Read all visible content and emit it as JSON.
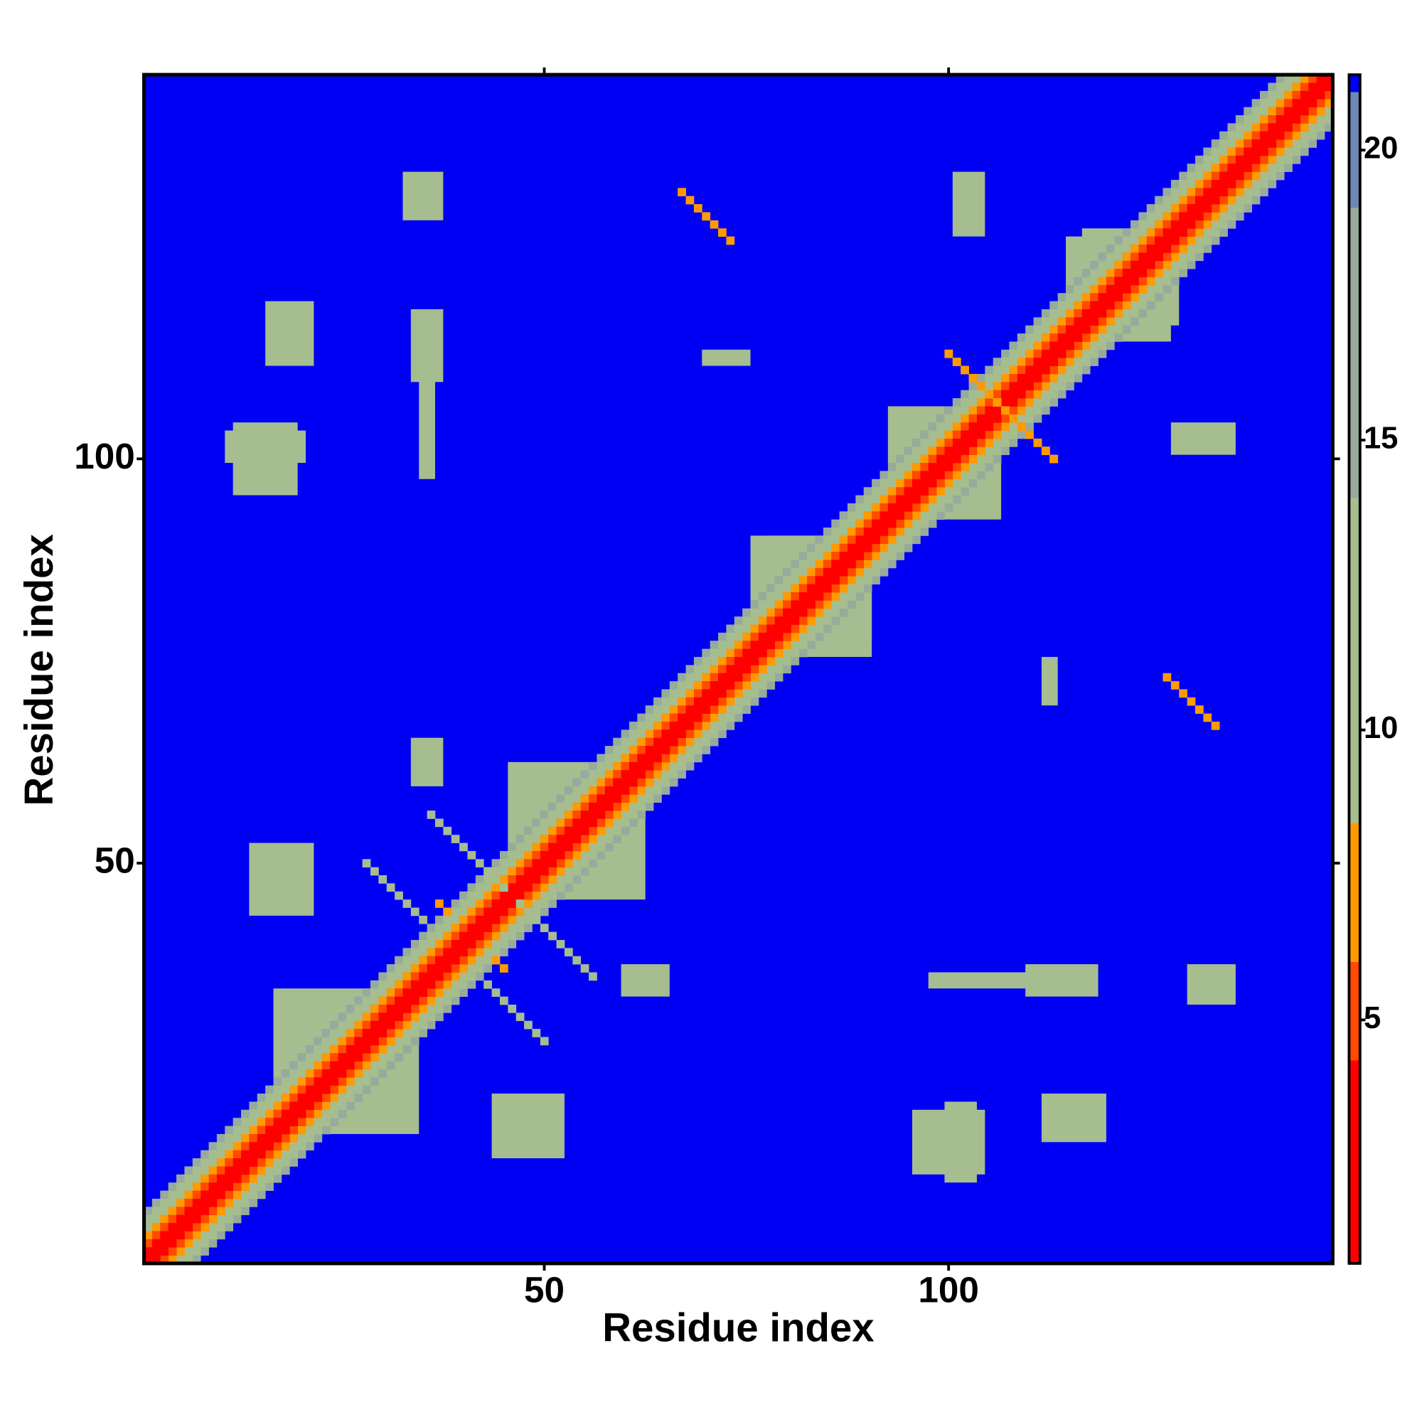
{
  "chart_data": {
    "type": "heatmap",
    "xlabel": "Residue index",
    "ylabel": "Residue index",
    "xlim": [
      0.5,
      147.5
    ],
    "ylim": [
      0.5,
      147.5
    ],
    "xticks": [
      50,
      100
    ],
    "yticks": [
      50,
      100
    ],
    "symmetric": true,
    "background": 21.2,
    "colorbar": {
      "breaks": [
        0.8,
        4.3,
        6,
        8.4,
        14,
        19,
        21,
        21.3
      ],
      "colors": [
        "#ff0000",
        "#ff4a00",
        "#ff9a00",
        "#a6bd8f",
        "#97aa9c",
        "#6f88b5",
        "#0000f5"
      ],
      "ticks": [
        5,
        10,
        15,
        20
      ]
    },
    "band": {
      "offsets": [
        0,
        1,
        2,
        3,
        4,
        5,
        6
      ],
      "values": [
        1,
        3,
        5,
        7,
        10,
        12,
        16
      ]
    },
    "patches": [
      {
        "x": [
          18,
          34
        ],
        "y": [
          17,
          33
        ],
        "value": 10
      },
      {
        "x": [
          47,
          62
        ],
        "y": [
          46,
          60
        ],
        "value": 10
      },
      {
        "x": [
          78,
          90
        ],
        "y": [
          76,
          90
        ],
        "value": 10
      },
      {
        "x": [
          115,
          128
        ],
        "y": [
          117,
          127
        ],
        "value": 10
      },
      {
        "x": [
          100,
          106
        ],
        "y": [
          93,
          99
        ],
        "value": 11
      },
      {
        "x": [
          33,
          37
        ],
        "y": [
          130,
          135
        ],
        "value": 11
      },
      {
        "x": [
          35,
          36
        ],
        "y": [
          98,
          112
        ],
        "value": 12
      },
      {
        "x": [
          101,
          104
        ],
        "y": [
          128,
          135
        ],
        "value": 11
      },
      {
        "x": [
          14,
          21
        ],
        "y": [
          44,
          52
        ],
        "value": 11
      },
      {
        "x": [
          96,
          104
        ],
        "y": [
          12,
          19
        ],
        "value": 12
      },
      {
        "x": [
          110,
          118
        ],
        "y": [
          34,
          37
        ],
        "value": 11
      },
      {
        "x": [
          34,
          37
        ],
        "y": [
          60,
          65
        ],
        "value": 11
      },
      {
        "x": [
          11,
          20
        ],
        "y": [
          100,
          103
        ],
        "value": 12
      },
      {
        "x": [
          16,
          21
        ],
        "y": [
          112,
          119
        ],
        "value": 13
      },
      {
        "x": [
          112,
          113
        ],
        "y": [
          70,
          75
        ],
        "value": 12
      }
    ],
    "strands": [
      {
        "x": 67,
        "y": 133,
        "length": 7,
        "value": 7
      },
      {
        "x": 100,
        "y": 113,
        "length": 14,
        "value": 6
      },
      {
        "x": 36,
        "y": 56,
        "length": 10,
        "value": 11
      },
      {
        "x": 43,
        "y": 35,
        "length": 8,
        "value": 12
      },
      {
        "x": 37,
        "y": 45,
        "length": 2,
        "value": 6
      }
    ]
  }
}
